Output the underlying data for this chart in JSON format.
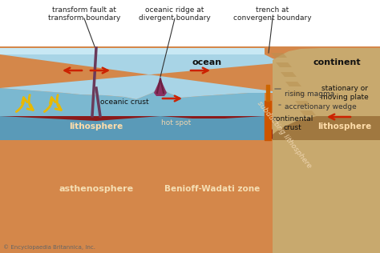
{
  "bg_color": "#ffffff",
  "asthenosphere_color": "#D4874A",
  "lithosphere_color": "#8B1A1A",
  "ocean_surface_color": "#A8D4E6",
  "ocean_crust_color": "#7BB8D0",
  "ocean_crust_dark": "#5A9AB8",
  "continent_color": "#C8A96E",
  "continent_mid": "#B89050",
  "continent_lower": "#A07840",
  "transform_color": "#7A3A5A",
  "arrow_color": "#CC2200",
  "yellow_arrow": "#E8B800",
  "magma_color": "#CC4400",
  "annotations": {
    "transform_fault": "transform fault at\ntransform boundary",
    "oceanic_ridge": "oceanic ridge at\ndivergent boundary",
    "trench": "trench at\nconvergent boundary",
    "ocean": "ocean",
    "continent": "continent",
    "stationary": "stationary or\nmoving plate",
    "continental_crust": "continental\ncrust",
    "oceanic_crust": "oceanic crust",
    "lithosphere_left": "lithosphere",
    "lithosphere_right": "lithosphere",
    "subducting": "subducting lithosphere",
    "hot_spot": "hot spot",
    "asthenosphere": "asthenosphere",
    "benioff": "Benioff-Wadati zone",
    "rising_magma": "rising magma",
    "accretionary": "accretionary wedge"
  },
  "copyright": "© Encyclopaedia Britannica, Inc."
}
